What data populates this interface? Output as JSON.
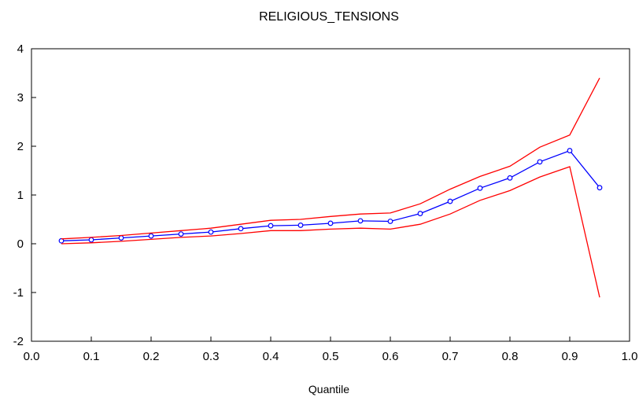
{
  "chart_data": {
    "type": "line",
    "title": "RELIGIOUS_TENSIONS",
    "xlabel": "Quantile",
    "ylabel": "",
    "xlim": [
      0.0,
      1.0
    ],
    "ylim": [
      -2,
      4
    ],
    "x_ticks": [
      "0.0",
      "0.1",
      "0.2",
      "0.3",
      "0.4",
      "0.5",
      "0.6",
      "0.7",
      "0.8",
      "0.9",
      "1.0"
    ],
    "y_ticks": [
      "-2",
      "-1",
      "0",
      "1",
      "2",
      "3",
      "4"
    ],
    "x": [
      0.05,
      0.1,
      0.15,
      0.2,
      0.25,
      0.3,
      0.35,
      0.4,
      0.45,
      0.5,
      0.55,
      0.6,
      0.65,
      0.7,
      0.75,
      0.8,
      0.85,
      0.9,
      0.95
    ],
    "series": [
      {
        "values": [
          0.06,
          0.08,
          0.12,
          0.16,
          0.2,
          0.24,
          0.31,
          0.37,
          0.38,
          0.42,
          0.47,
          0.46,
          0.62,
          0.87,
          1.14,
          1.35,
          1.68,
          1.91,
          1.15
        ],
        "color": "#0000ff",
        "markers": true
      },
      {
        "values": [
          0.1,
          0.13,
          0.17,
          0.22,
          0.27,
          0.32,
          0.4,
          0.48,
          0.5,
          0.56,
          0.61,
          0.63,
          0.82,
          1.12,
          1.38,
          1.59,
          1.98,
          2.23,
          3.4
        ],
        "color": "#ff0000",
        "markers": false
      },
      {
        "values": [
          0.0,
          0.02,
          0.05,
          0.09,
          0.13,
          0.16,
          0.21,
          0.27,
          0.27,
          0.3,
          0.32,
          0.3,
          0.4,
          0.61,
          0.89,
          1.09,
          1.37,
          1.58,
          -1.1
        ],
        "color": "#ff0000",
        "markers": false
      }
    ],
    "grid": false,
    "legend": "none"
  }
}
